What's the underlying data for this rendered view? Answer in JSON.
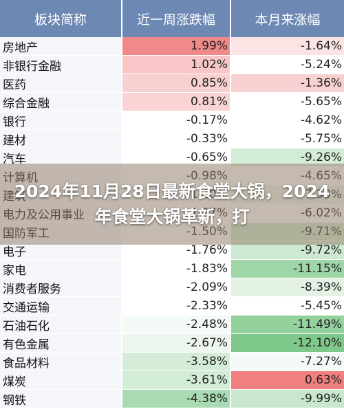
{
  "header": {
    "col_name": "板块简称",
    "col_week": "近一周涨跌幅",
    "col_month": "本月来涨幅"
  },
  "rows": [
    {
      "name": "房地产",
      "week": "1.99%",
      "month": "-1.64%",
      "wk_color": "#f08a8a",
      "mo_color": "#fbe4e4"
    },
    {
      "name": "非银行金融",
      "week": "1.02%",
      "month": "-5.24%",
      "wk_color": "#f8c6c6",
      "mo_color": "#ffffff"
    },
    {
      "name": "医药",
      "week": "0.85%",
      "month": "-1.36%",
      "wk_color": "#f9d0d0",
      "mo_color": "#f8d2d2"
    },
    {
      "name": "综合金融",
      "week": "0.81%",
      "month": "-5.65%",
      "wk_color": "#fad4d4",
      "mo_color": "#ffffff"
    },
    {
      "name": "银行",
      "week": "-0.17%",
      "month": "-4.62%",
      "wk_color": "#ffffff",
      "mo_color": "#ffffff"
    },
    {
      "name": "建材",
      "week": "-0.33%",
      "month": "-5.75%",
      "wk_color": "#ffffff",
      "mo_color": "#ffffff"
    },
    {
      "name": "汽车",
      "week": "-0.65%",
      "month": "-9.26%",
      "wk_color": "#ffffff",
      "mo_color": "#d3ecd6"
    },
    {
      "name": "计算机",
      "week": "-0.98%",
      "month": "-4.65%",
      "wk_color": "#ffffff",
      "mo_color": "#ffffff"
    },
    {
      "name": "建筑",
      "week": "-1.10%",
      "month": "-7.38%",
      "wk_color": "#ffffff",
      "mo_color": "#eef7ef"
    },
    {
      "name": "电力及公用事业",
      "week": "-1.27%",
      "month": "-6.02%",
      "wk_color": "#ffffff",
      "mo_color": "#ffffff"
    },
    {
      "name": "国防军工",
      "week": "-1.50%",
      "month": "-9.71%",
      "wk_color": "#ffffff",
      "mo_color": "#cde9d1"
    },
    {
      "name": "电子",
      "week": "-1.76%",
      "month": "-9.72%",
      "wk_color": "#ffffff",
      "mo_color": "#cde9d1"
    },
    {
      "name": "家电",
      "week": "-1.83%",
      "month": "-11.15%",
      "wk_color": "#ffffff",
      "mo_color": "#9fd6a8"
    },
    {
      "name": "消费者服务",
      "week": "-2.09%",
      "month": "-8.39%",
      "wk_color": "#ffffff",
      "mo_color": "#e3f2e5"
    },
    {
      "name": "交通运输",
      "week": "-2.33%",
      "month": "-5.45%",
      "wk_color": "#ffffff",
      "mo_color": "#ffffff"
    },
    {
      "name": "石油石化",
      "week": "-2.48%",
      "month": "-11.49%",
      "wk_color": "#f4faf5",
      "mo_color": "#93d19d"
    },
    {
      "name": "有色金属",
      "week": "-2.67%",
      "month": "-12.10%",
      "wk_color": "#eef7ef",
      "mo_color": "#7fc88b"
    },
    {
      "name": "食品材料",
      "week": "-3.58%",
      "month": "-7.27%",
      "wk_color": "#d5edd8",
      "mo_color": "#f4faf5"
    },
    {
      "name": "煤炭",
      "week": "-3.61%",
      "month": "0.63%",
      "wk_color": "#d3ecd6",
      "mo_color": "#f07f7f"
    },
    {
      "name": "钢铁",
      "week": "-4.38%",
      "month": "-9.99%",
      "wk_color": "#a9dab1",
      "mo_color": "#c8e7cd"
    }
  ],
  "overlay": {
    "title": "2024年11月28日最新食堂大锅，2024年食堂大锅革新，打"
  },
  "colors": {
    "header_bg": "#6e88b4",
    "name_bg": "#f4f6fa"
  }
}
